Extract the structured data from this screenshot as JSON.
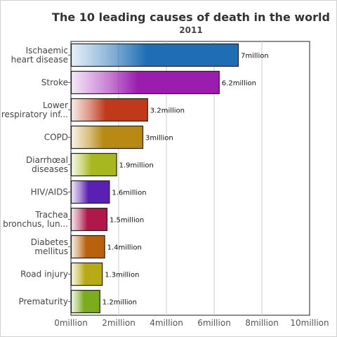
{
  "chart_data": {
    "type": "bar",
    "orientation": "horizontal",
    "title": "The 10 leading causes of death in the world",
    "subtitle": "2011",
    "categories": [
      [
        "Ischaemic",
        "heart disease"
      ],
      [
        "Stroke"
      ],
      [
        "Lower",
        "respiratory inf..."
      ],
      [
        "COPD"
      ],
      [
        "Diarrhœal",
        "diseases"
      ],
      [
        "HIV/AIDS"
      ],
      [
        "Trachea",
        "bronchus, lun..."
      ],
      [
        "Diabetes",
        "mellitus"
      ],
      [
        "Road injury"
      ],
      [
        "Prematurity"
      ]
    ],
    "values": [
      7,
      6.2,
      3.2,
      3,
      1.9,
      1.6,
      1.5,
      1.4,
      1.3,
      1.2
    ],
    "value_labels": [
      "7million",
      "6.2million",
      "3.2million",
      "3million",
      "1.9million",
      "1.6million",
      "1.5million",
      "1.4million",
      "1.3million",
      "1.2million"
    ],
    "colors": [
      "#1f6eb5",
      "#9b1db0",
      "#c0391a",
      "#b88a14",
      "#a6b81e",
      "#5a1fb3",
      "#b0184c",
      "#b8620f",
      "#b8aa14",
      "#7aac1c"
    ],
    "xlim": [
      0,
      10
    ],
    "x_ticks": [
      0,
      2,
      4,
      6,
      8,
      10
    ],
    "x_tick_labels": [
      "0million",
      "2million",
      "4million",
      "6million",
      "8million",
      "10million"
    ],
    "xlabel": "",
    "ylabel": "",
    "grid": true,
    "legend": "none"
  }
}
